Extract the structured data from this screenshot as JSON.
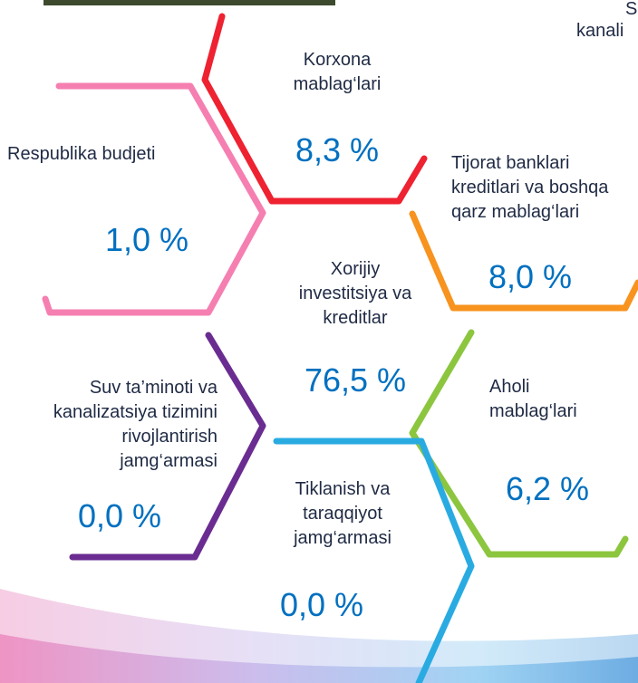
{
  "segments": [
    {
      "label": [
        "Korxona",
        "mablag‘lari"
      ],
      "value": "8,3 %"
    },
    {
      "label": [
        "Respublika budjeti"
      ],
      "value": "1,0 %"
    },
    {
      "label": [
        "Tijorat banklari",
        "kreditlari va boshqa",
        "qarz mablag‘lari"
      ],
      "value": "8,0 %"
    },
    {
      "label": [
        "Xorijiy",
        "investitsiya va",
        "kreditlar"
      ],
      "value": "76,5 %"
    },
    {
      "label": [
        "Suv ta’minoti va",
        "kanalizatsiya tizimini",
        "rivojlantirish",
        "jamg‘armasi"
      ],
      "value": "0,0 %"
    },
    {
      "label": [
        "Aholi",
        "mablag‘lari"
      ],
      "value": "6,2 %"
    },
    {
      "label": [
        "Tiklanish va",
        "taraqqiyot",
        "jamg‘armasi"
      ],
      "value": "0,0 %"
    }
  ],
  "corner_text": [
    "S",
    "kanali"
  ]
}
